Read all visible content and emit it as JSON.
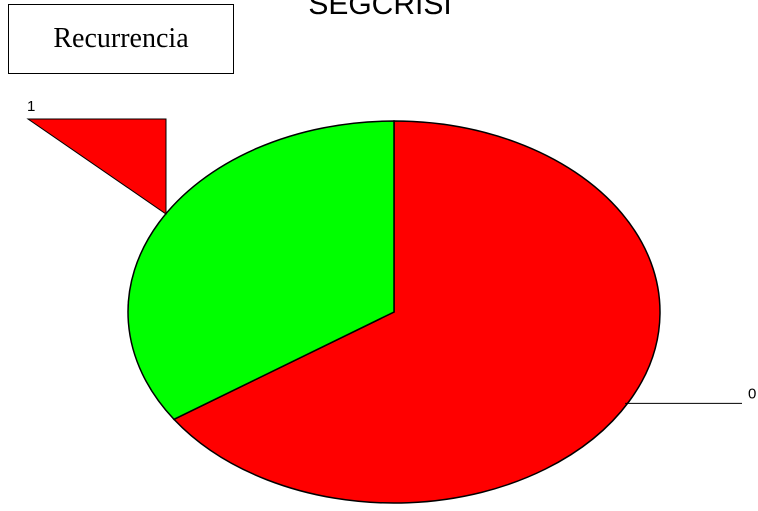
{
  "chart_data": {
    "type": "pie",
    "title": "SEGCRISI",
    "legend_title": "Recurrencia",
    "legend_position": "top-left",
    "slices": [
      {
        "label": "0",
        "value": 65.5,
        "color": "#ff0000"
      },
      {
        "label": "1",
        "value": 34.5,
        "color": "#00ff00"
      }
    ],
    "colors": {
      "outline": "#000000",
      "callout_fill": "#ff0000"
    }
  }
}
